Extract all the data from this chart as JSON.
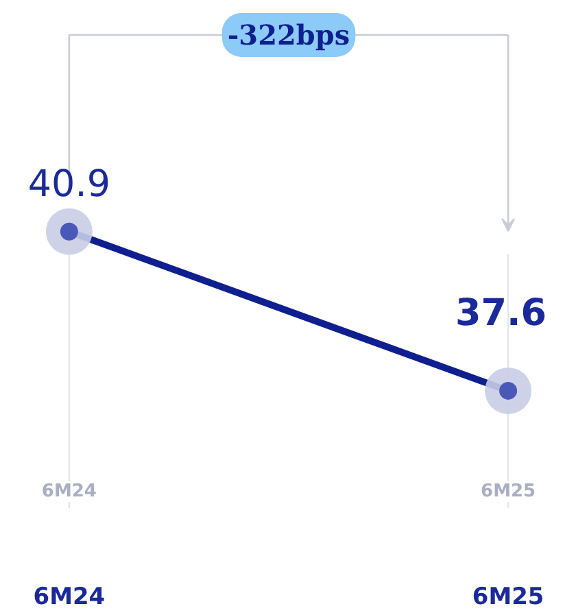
{
  "chart_data": {
    "type": "line",
    "categories": [
      "6M24",
      "6M25"
    ],
    "series": [
      {
        "color": "#0f1f8f",
        "values": [
          40.9,
          37.6
        ]
      }
    ],
    "data_labels": true,
    "marker": "circle",
    "line_style": "solid",
    "grid": "x",
    "tick_labels": "x",
    "annotations": [
      "-322bps"
    ]
  }
}
